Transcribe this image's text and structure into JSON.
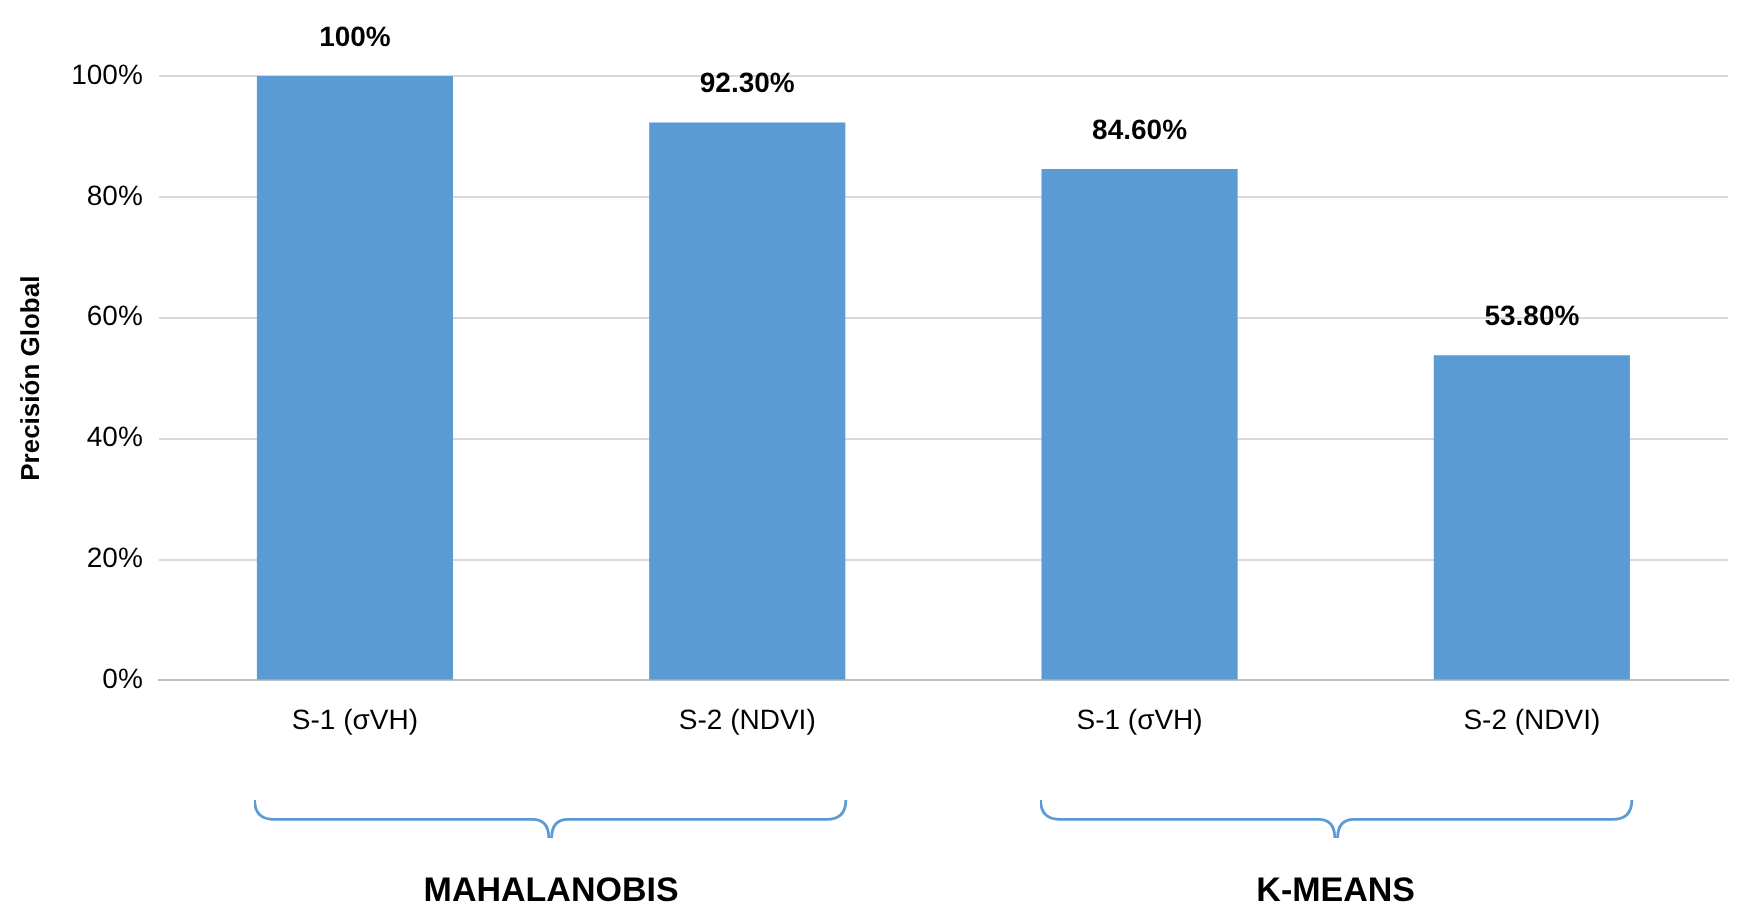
{
  "chart_data": {
    "type": "bar",
    "ylabel": "Precisión Global",
    "categories": [
      "S-1 (σVH)",
      "S-2 (NDVI)",
      "S-1 (σVH)",
      "S-2 (NDVI)"
    ],
    "values": [
      100,
      92.3,
      84.6,
      53.8
    ],
    "color": "#5b9bd5",
    "value_labels": [
      "100%",
      "92.30%",
      "84.60%",
      "53.80%"
    ],
    "ylim": [
      0,
      100
    ],
    "yticks": [
      {
        "value": 0,
        "label": "0%"
      },
      {
        "value": 20,
        "label": "20%"
      },
      {
        "value": 40,
        "label": "40%"
      },
      {
        "value": 60,
        "label": "60%"
      },
      {
        "value": 80,
        "label": "80%"
      },
      {
        "value": 100,
        "label": "100%"
      }
    ],
    "grid": "y",
    "legend": false,
    "annotations": [
      "MAHALANOBIS",
      "K-MEANS"
    ]
  }
}
